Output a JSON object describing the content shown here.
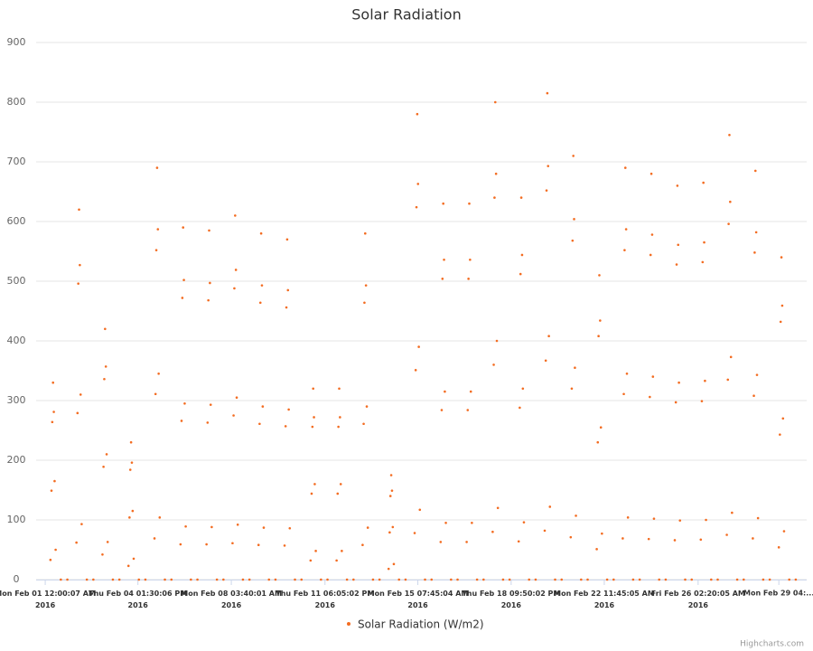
{
  "chart_data": {
    "type": "scatter",
    "title": "Solar Radiation",
    "series": [
      {
        "name": "Solar Radiation (W/m2)",
        "color": "#f36c21",
        "x": [
          0.2,
          0.24,
          0.27,
          0.3,
          0.33,
          0.36,
          0.4,
          0.6,
          0.85,
          1.2,
          1.24,
          1.27,
          1.3,
          1.33,
          1.36,
          1.4,
          1.6,
          1.85,
          2.2,
          2.24,
          2.27,
          2.3,
          2.33,
          2.36,
          2.4,
          2.6,
          2.85,
          3.2,
          3.24,
          3.27,
          3.3,
          3.33,
          3.36,
          3.4,
          3.6,
          3.85,
          4.2,
          4.24,
          4.27,
          4.3,
          4.33,
          4.36,
          4.4,
          4.6,
          4.85,
          5.2,
          5.24,
          5.27,
          5.3,
          5.33,
          5.36,
          5.4,
          5.6,
          5.85,
          6.2,
          6.24,
          6.27,
          6.3,
          6.33,
          6.36,
          6.4,
          6.6,
          6.85,
          7.2,
          7.24,
          7.27,
          7.3,
          7.33,
          7.36,
          7.4,
          7.6,
          7.85,
          8.2,
          8.24,
          8.27,
          8.3,
          8.33,
          8.36,
          8.4,
          8.6,
          8.85,
          9.2,
          9.24,
          9.27,
          9.3,
          9.33,
          9.36,
          9.4,
          9.6,
          9.85,
          10.2,
          10.24,
          10.27,
          10.3,
          10.33,
          10.36,
          10.4,
          10.6,
          10.85,
          11.2,
          11.24,
          11.27,
          11.3,
          11.33,
          11.36,
          11.4,
          11.6,
          11.85,
          12.2,
          12.24,
          12.27,
          12.3,
          12.33,
          12.36,
          12.4,
          12.6,
          12.85,
          13.2,
          13.24,
          13.27,
          13.3,
          13.33,
          13.36,
          13.4,
          13.6,
          13.85,
          14.2,
          14.24,
          14.27,
          14.3,
          14.33,
          14.36,
          14.4,
          14.6,
          14.85,
          15.2,
          15.24,
          15.27,
          15.3,
          15.33,
          15.36,
          15.4,
          15.6,
          15.85,
          16.2,
          16.24,
          16.27,
          16.3,
          16.33,
          16.36,
          16.4,
          16.6,
          16.85,
          17.2,
          17.24,
          17.27,
          17.3,
          17.33,
          17.36,
          17.4,
          17.6,
          17.85,
          18.2,
          18.24,
          18.27,
          18.3,
          18.33,
          18.36,
          18.4,
          18.6,
          18.85,
          19.2,
          19.24,
          19.27,
          19.3,
          19.33,
          19.36,
          19.4,
          19.6,
          19.85,
          20.2,
          20.24,
          20.27,
          20.3,
          20.33,
          20.36,
          20.4,
          20.6,
          20.85,
          21.2,
          21.24,
          21.27,
          21.3,
          21.33,
          21.36,
          21.4,
          21.6,
          21.85,
          22.2,
          22.24,
          22.27,
          22.3,
          22.33,
          22.36,
          22.4,
          22.6,
          22.85,
          23.2,
          23.24,
          23.27,
          23.3,
          23.33,
          23.36,
          23.4,
          23.6,
          23.85,
          24.2,
          24.24,
          24.27,
          24.3,
          24.33,
          24.36,
          24.4,
          24.6,
          24.85,
          25.2,
          25.24,
          25.27,
          25.3,
          25.33,
          25.36,
          25.4,
          25.6,
          25.85,
          26.2,
          26.24,
          26.27,
          26.3,
          26.33,
          26.36,
          26.4,
          26.6,
          26.85,
          27.2,
          27.24,
          27.27,
          27.3,
          27.33,
          27.36,
          27.4,
          27.6,
          27.85,
          28.2,
          28.24,
          28.27,
          28.3,
          28.33,
          28.36,
          28.4,
          28.6,
          28.85
        ],
        "values": [
          33,
          149,
          264,
          330,
          281,
          165,
          50,
          0,
          0,
          62,
          279,
          496,
          620,
          527,
          310,
          93,
          0,
          0,
          42,
          189,
          336,
          420,
          357,
          210,
          63,
          0,
          0,
          23,
          104,
          184,
          230,
          196,
          115,
          35,
          0,
          0,
          69,
          311,
          552,
          690,
          587,
          345,
          104,
          0,
          0,
          59,
          266,
          472,
          590,
          502,
          295,
          89,
          0,
          0,
          59,
          263,
          468,
          585,
          497,
          293,
          88,
          0,
          0,
          61,
          275,
          488,
          610,
          519,
          305,
          92,
          0,
          0,
          58,
          261,
          464,
          580,
          493,
          290,
          87,
          0,
          0,
          57,
          257,
          456,
          570,
          485,
          285,
          86,
          0,
          0,
          32,
          144,
          256,
          320,
          272,
          160,
          48,
          0,
          0,
          32,
          144,
          256,
          320,
          272,
          160,
          48,
          0,
          0,
          58,
          261,
          464,
          580,
          493,
          290,
          87,
          0,
          0,
          18,
          79,
          140,
          175,
          149,
          88,
          26,
          0,
          0,
          78,
          351,
          624,
          780,
          663,
          390,
          117,
          0,
          0,
          63,
          284,
          504,
          630,
          536,
          315,
          95,
          0,
          0,
          63,
          284,
          504,
          630,
          536,
          315,
          95,
          0,
          0,
          80,
          360,
          640,
          800,
          680,
          400,
          120,
          0,
          0,
          64,
          288,
          512,
          640,
          544,
          320,
          96,
          0,
          0,
          82,
          367,
          652,
          815,
          693,
          408,
          122,
          0,
          0,
          71,
          320,
          568,
          710,
          604,
          355,
          107,
          0,
          0,
          51,
          230,
          408,
          510,
          434,
          255,
          77,
          0,
          0,
          69,
          311,
          552,
          690,
          587,
          345,
          104,
          0,
          0,
          68,
          306,
          544,
          680,
          578,
          340,
          102,
          0,
          0,
          66,
          297,
          528,
          660,
          561,
          330,
          99,
          0,
          0,
          67,
          299,
          532,
          665,
          565,
          333,
          100,
          0,
          0,
          75,
          335,
          596,
          745,
          633,
          373,
          112,
          0,
          0,
          69,
          308,
          548,
          685,
          582,
          343,
          103,
          0,
          0,
          54,
          243,
          432,
          540,
          459,
          270,
          81,
          0,
          0
        ]
      }
    ],
    "xlim": [
      -0.35,
      29.27
    ],
    "xticks": [
      {
        "value": 0,
        "label": "Mon Feb 01 12:00:07 AM\n2016"
      },
      {
        "value": 3.5625,
        "label": "Thu Feb 04 01:30:06 PM\n2016"
      },
      {
        "value": 7.153,
        "label": "Mon Feb 08 03:40:01 AM\n2016"
      },
      {
        "value": 10.754,
        "label": "Thu Feb 11 06:05:02 PM\n2016"
      },
      {
        "value": 14.323,
        "label": "Mon Feb 15 07:45:04 AM\n2016"
      },
      {
        "value": 17.91,
        "label": "Thu Feb 18 09:50:02 PM\n2016"
      },
      {
        "value": 21.49,
        "label": "Mon Feb 22 11:45:05 AM\n2016"
      },
      {
        "value": 25.097,
        "label": "Fri Feb 26 02:20:05 AM\n2016"
      },
      {
        "value": 28.2,
        "label": "Mon Feb 29 04:..."
      }
    ],
    "ylim": [
      0,
      900
    ],
    "yticks": [
      0,
      100,
      200,
      300,
      400,
      500,
      600,
      700,
      800,
      900
    ],
    "grid": true,
    "legend": "bottom",
    "credits": "Highcharts.com"
  }
}
